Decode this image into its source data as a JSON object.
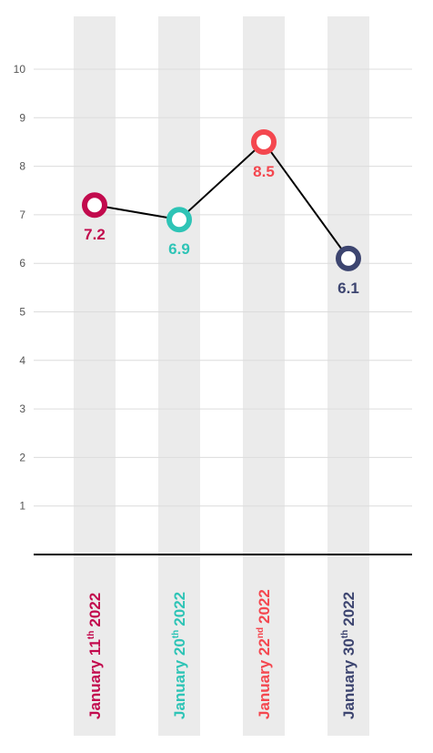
{
  "chart_data": {
    "type": "line",
    "title": "",
    "xlabel": "",
    "ylabel": "",
    "ylim": [
      0,
      10
    ],
    "yticks": [
      "1",
      "2",
      "3",
      "4",
      "5",
      "6",
      "7",
      "8",
      "9",
      "10"
    ],
    "grid": true,
    "line_color": "#000000",
    "points": [
      {
        "label_main": "January 11",
        "label_sup": "th",
        "label_year": "2022",
        "value": 7.2,
        "value_label": "7.2",
        "color": "#c20a4d"
      },
      {
        "label_main": "January 20",
        "label_sup": "th",
        "label_year": "2022",
        "value": 6.9,
        "value_label": "6.9",
        "color": "#2ec4b6"
      },
      {
        "label_main": "January 22",
        "label_sup": "nd",
        "label_year": "2022",
        "value": 8.5,
        "value_label": "8.5",
        "color": "#f4474f"
      },
      {
        "label_main": "January 30",
        "label_sup": "th",
        "label_year": "2022",
        "value": 6.1,
        "value_label": "6.1",
        "color": "#3d4570"
      }
    ]
  }
}
